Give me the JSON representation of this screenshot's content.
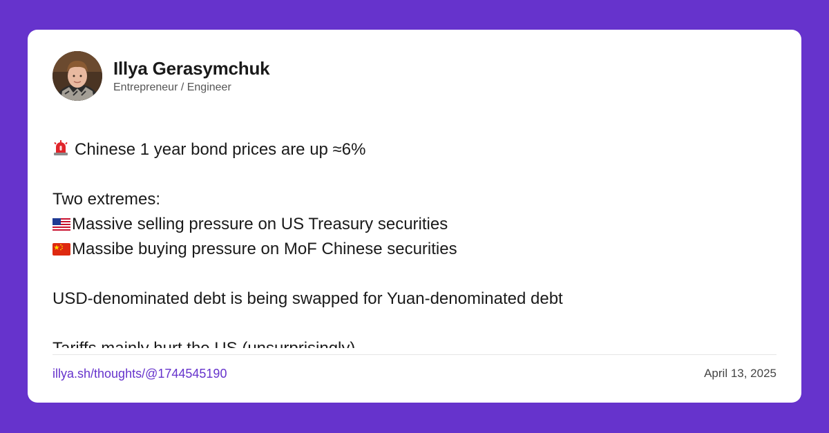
{
  "author": {
    "name": "Illya Gerasymchuk",
    "role": "Entrepreneur / Engineer",
    "avatar_icon": "avatar-photo"
  },
  "post": {
    "line1": "Chinese 1 year bond prices are up ≈6%",
    "line1_icon": "siren-icon",
    "line2": "Two extremes:",
    "line3": "Massive selling pressure on US Treasury securities",
    "line3_icon": "us-flag-icon",
    "line4": "Massibe buying pressure on MoF Chinese securities",
    "line4_icon": "china-flag-icon",
    "line5": "USD-denominated debt is being swapped for Yuan-denominated debt",
    "line6": "Tariffs mainly hurt the US (unsurprisingly)"
  },
  "footer": {
    "link": "illya.sh/thoughts/@1744545190",
    "date": "April 13, 2025"
  },
  "colors": {
    "background": "#6633cc",
    "card": "#ffffff",
    "accent": "#6633cc"
  }
}
